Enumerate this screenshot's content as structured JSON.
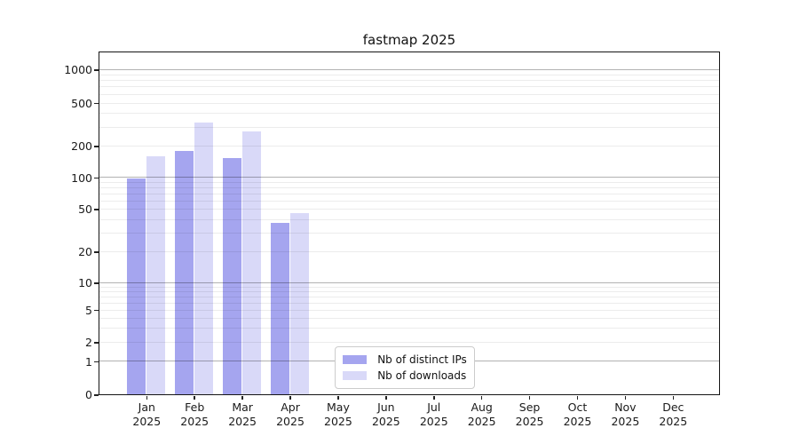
{
  "chart_data": {
    "type": "bar",
    "title": "fastmap 2025",
    "categories": [
      "Jan",
      "Feb",
      "Mar",
      "Apr",
      "May",
      "Jun",
      "Jul",
      "Aug",
      "Sep",
      "Oct",
      "Nov",
      "Dec"
    ],
    "category_year": "2025",
    "series": [
      {
        "name": "Nb of distinct IPs",
        "color": "#a5a5ef",
        "values": [
          97,
          180,
          152,
          37,
          0,
          0,
          0,
          0,
          0,
          0,
          0,
          0
        ]
      },
      {
        "name": "Nb of downloads",
        "color": "#d9d9f8",
        "values": [
          160,
          327,
          270,
          46,
          0,
          0,
          0,
          0,
          0,
          0,
          0,
          0
        ]
      }
    ],
    "yaxis": {
      "scale": "log-like",
      "ticks": [
        0,
        1,
        2,
        5,
        10,
        20,
        50,
        100,
        200,
        500,
        1000
      ],
      "range": [
        0,
        1500
      ]
    },
    "grid": {
      "major": [
        1,
        10,
        100,
        1000
      ],
      "minor_decades": [
        1,
        10,
        100
      ],
      "minor_multiples": [
        2,
        3,
        4,
        5,
        6,
        7,
        8,
        9
      ]
    },
    "legend": {
      "position": "lower-center",
      "entries": [
        "Nb of distinct IPs",
        "Nb of downloads"
      ]
    }
  }
}
